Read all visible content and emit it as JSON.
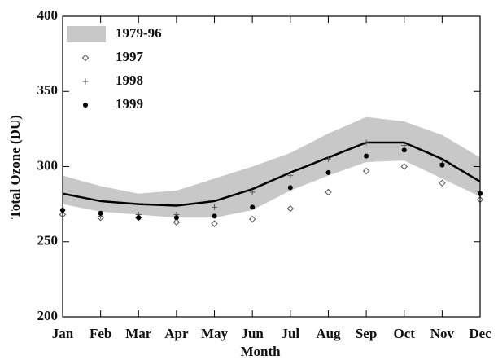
{
  "chart_data": {
    "type": "line",
    "x_label": "Month",
    "y_label": "Total Ozone (DU)",
    "categories": [
      "Jan",
      "Feb",
      "Mar",
      "Apr",
      "May",
      "Jun",
      "Jul",
      "Aug",
      "Sep",
      "Oct",
      "Nov",
      "Dec"
    ],
    "ylim": [
      200,
      400
    ],
    "yticks": [
      200,
      250,
      300,
      350,
      400
    ],
    "series": [
      {
        "name": "1979-96",
        "kind": "band",
        "color": "#c8c8c8",
        "line_color": "#000000",
        "values": [
          282,
          277,
          275,
          274,
          277,
          285,
          296,
          306,
          316,
          316,
          305,
          290
        ],
        "lower": [
          275,
          270,
          268,
          266,
          266,
          271,
          284,
          294,
          303,
          304,
          292,
          280
        ],
        "upper": [
          294,
          287,
          282,
          284,
          292,
          300,
          309,
          322,
          333,
          330,
          321,
          306
        ]
      },
      {
        "name": "1997",
        "kind": "diamond",
        "color": "#555555",
        "values": [
          268,
          266,
          266,
          263,
          262,
          265,
          272,
          283,
          297,
          300,
          289,
          278
        ]
      },
      {
        "name": "1998",
        "kind": "plus",
        "color": "#555555",
        "values": [
          271,
          267,
          268,
          268,
          273,
          283,
          294,
          305,
          316,
          314,
          302,
          283
        ]
      },
      {
        "name": "1999",
        "kind": "dot",
        "color": "#000000",
        "values": [
          271,
          269,
          266,
          266,
          267,
          273,
          286,
          296,
          307,
          311,
          301,
          282
        ]
      }
    ]
  }
}
